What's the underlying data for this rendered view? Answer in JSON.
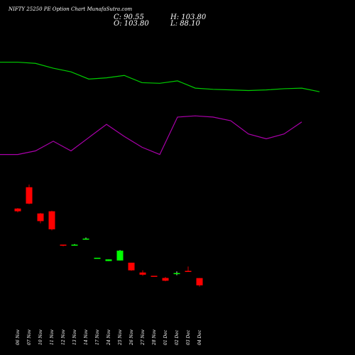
{
  "header": {
    "title": "NIFTY 25250  PE Option  Chart  MunafaSutra.com",
    "close_text": "C: 90.55",
    "open_text": "O: 103.80",
    "high_text": "H: 103.80",
    "low_text": "L: 88.10"
  },
  "colors": {
    "background": "#000000",
    "bull": "#00ff00",
    "bear": "#ff0000",
    "green_line": "#00cc00",
    "purple_line": "#aa00aa",
    "text": "#ffffff"
  },
  "chart_data": {
    "type": "candlestick",
    "categories": [
      "06 Nov",
      "07 Nov",
      "10 Nov",
      "11 Nov",
      "12 Nov",
      "13 Nov",
      "14 Nov",
      "17 Nov",
      "24 Nov",
      "25 Nov",
      "26 Nov",
      "27 Nov",
      "28 Nov",
      "01 Dec",
      "02 Dec",
      "03 Dec",
      "04 Dec"
    ],
    "candles": [
      {
        "open": 231,
        "close": 226,
        "high": 232,
        "low": 224
      },
      {
        "open": 270,
        "close": 240,
        "high": 275,
        "low": 239
      },
      {
        "open": 222,
        "close": 208,
        "high": 223,
        "low": 204
      },
      {
        "open": 226,
        "close": 193,
        "high": 227,
        "low": 191
      },
      {
        "open": 165,
        "close": 163,
        "high": 165,
        "low": 162
      },
      {
        "open": 164,
        "close": 165,
        "high": 166,
        "low": 164
      },
      {
        "open": 175,
        "close": 176,
        "high": 178,
        "low": 175
      },
      {
        "open": 141,
        "close": 141,
        "high": 141,
        "low": 141
      },
      {
        "open": 135,
        "close": 138,
        "high": 138,
        "low": 135
      },
      {
        "open": 136,
        "close": 154,
        "high": 155,
        "low": 136
      },
      {
        "open": 132,
        "close": 118,
        "high": 132,
        "low": 117
      },
      {
        "open": 114,
        "close": 110,
        "high": 118,
        "low": 108
      },
      {
        "open": 108,
        "close": 107,
        "high": 108,
        "low": 106
      },
      {
        "open": 104,
        "close": 99,
        "high": 106,
        "low": 98
      },
      {
        "open": 112,
        "close": 113,
        "high": 116,
        "low": 109
      },
      {
        "open": 117,
        "close": 116,
        "high": 125,
        "low": 115
      },
      {
        "open": 103.8,
        "close": 90.55,
        "high": 103.8,
        "low": 88.1
      }
    ],
    "green_line": [
      0.985,
      0.985,
      0.975,
      0.935,
      0.905,
      0.845,
      0.855,
      0.875,
      0.815,
      0.81,
      0.83,
      0.77,
      0.76,
      0.755,
      0.75,
      0.755,
      0.765,
      0.77,
      0.74
    ],
    "purple_line": [
      0.22,
      0.22,
      0.25,
      0.33,
      0.25,
      0.36,
      0.47,
      0.37,
      0.28,
      0.22,
      0.53,
      0.54,
      0.53,
      0.5,
      0.39,
      0.35,
      0.39,
      0.49
    ]
  }
}
